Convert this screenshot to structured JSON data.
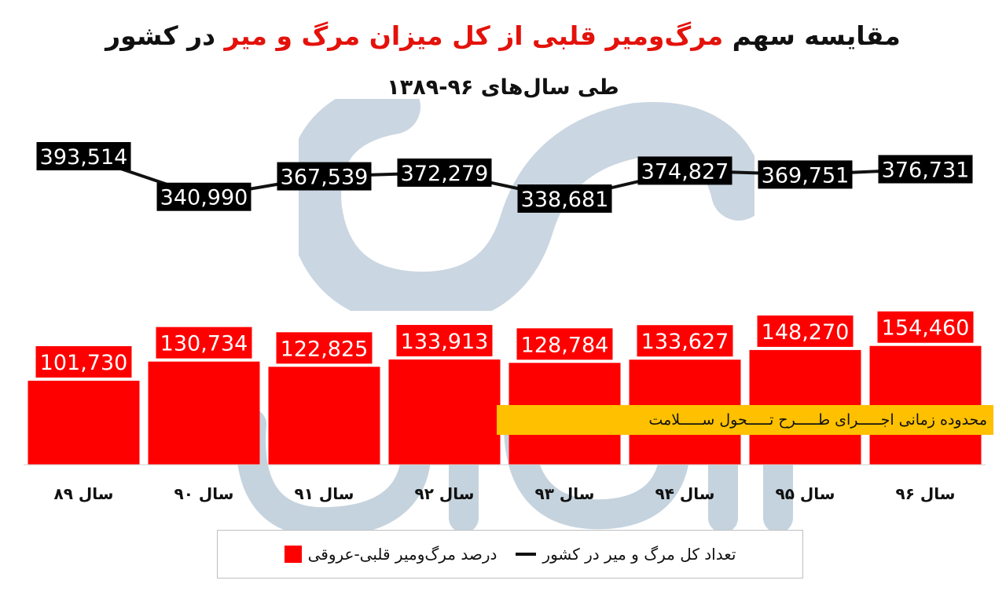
{
  "title": {
    "part1": "مقایسه سهم",
    "part2": "مرگ‌ومیر قلبی از کل میزان مرگ و میر",
    "part3": "در کشور"
  },
  "subtitle": "طی سال‌های ۹۶-۱۳۸۹",
  "annotation": "محدوده زمانی اجـــــرای طـــــرح تـــــحول ســـــلامت",
  "legend": {
    "bar_label": "درصد مرگ‌ومیر قلبی-عروقی",
    "line_label": "تعداد کل مرگ و میر در کشور"
  },
  "colors": {
    "bar": "#ff0000",
    "line": "#111111",
    "label_bg": "#000000",
    "annotation_bg": "#ffc000",
    "watermark": "#9fb6c9"
  },
  "chart_data": {
    "type": "bar",
    "categories": [
      "سال ۸۹",
      "سال ۹۰",
      "سال ۹۱",
      "سال ۹۲",
      "سال ۹۳",
      "سال ۹۴",
      "سال ۹۵",
      "سال ۹۶"
    ],
    "series": [
      {
        "name": "درصد مرگ‌ومیر قلبی-عروقی",
        "type": "bar",
        "values": [
          101730,
          130734,
          122825,
          133913,
          128784,
          133627,
          148270,
          154460
        ],
        "labels": [
          "101,730",
          "130,734",
          "122,825",
          "133,913",
          "128,784",
          "133,627",
          "148,270",
          "154,460"
        ]
      },
      {
        "name": "تعداد کل مرگ و میر در کشور",
        "type": "line",
        "values": [
          393514,
          340990,
          367539,
          372279,
          338681,
          374827,
          369751,
          376731
        ],
        "labels": [
          "393,514",
          "340,990",
          "367,539",
          "372,279",
          "338,681",
          "374,827",
          "369,751",
          "376,731"
        ]
      }
    ],
    "grid": false,
    "legend_position": "bottom"
  }
}
